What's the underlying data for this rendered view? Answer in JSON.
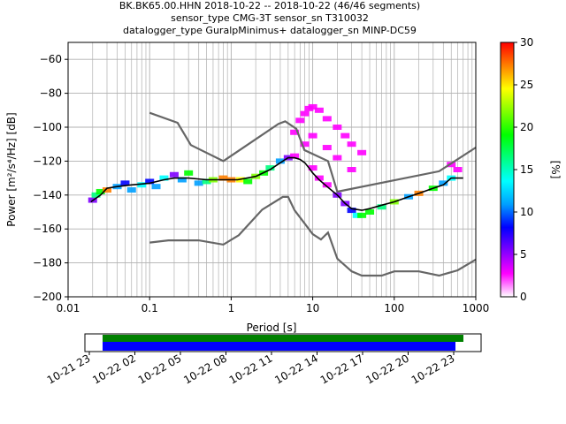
{
  "title": {
    "line1": "BK.BK65.00.HHN   2018-10-22 -- 2018-10-22  (46/46 segments)",
    "line2": "sensor_type CMG-3T sensor_sn T310032",
    "line3": "datalogger_type GuralpMinimus+ datalogger_sn MINP-DC59"
  },
  "chart_data": {
    "type": "heatmap",
    "subtype": "probabilistic power spectral density",
    "xlabel": "Period [s]",
    "ylabel": "Power [m²/s⁴/Hz] [dB]",
    "xscale": "log",
    "xlim": [
      0.01,
      1000
    ],
    "ylim": [
      -200,
      -50
    ],
    "grid": true,
    "x_ticks": [
      {
        "value": 0.01,
        "label": "0.01"
      },
      {
        "value": 0.1,
        "label": "0.1"
      },
      {
        "value": 1,
        "label": "1"
      },
      {
        "value": 10,
        "label": "10"
      },
      {
        "value": 100,
        "label": "100"
      },
      {
        "value": 1000,
        "label": "1000"
      }
    ],
    "y_ticks": [
      {
        "value": -60,
        "label": "−60"
      },
      {
        "value": -80,
        "label": "−80"
      },
      {
        "value": -100,
        "label": "−100"
      },
      {
        "value": -120,
        "label": "−120"
      },
      {
        "value": -140,
        "label": "−140"
      },
      {
        "value": -160,
        "label": "−160"
      },
      {
        "value": -180,
        "label": "−180"
      },
      {
        "value": -200,
        "label": "−200"
      }
    ],
    "colorbar": {
      "label": "[%]",
      "range": [
        0,
        30
      ],
      "ticks": [
        {
          "value": 0,
          "label": "0"
        },
        {
          "value": 5,
          "label": "5"
        },
        {
          "value": 10,
          "label": "10"
        },
        {
          "value": 15,
          "label": "15"
        },
        {
          "value": 20,
          "label": "20"
        },
        {
          "value": 25,
          "label": "25"
        },
        {
          "value": 30,
          "label": "30"
        }
      ],
      "colors": [
        "#ffffff",
        "#ff00ff",
        "#7f00ff",
        "#0000ff",
        "#00a0ff",
        "#00ffff",
        "#00ff80",
        "#00ff00",
        "#80ff00",
        "#ffff00",
        "#ff8000",
        "#ff0000"
      ]
    },
    "noise_models": [
      {
        "points": [
          [
            0.1,
            -91.5
          ],
          [
            0.22,
            -97.4
          ],
          [
            0.32,
            -110.5
          ],
          [
            0.8,
            -120
          ],
          [
            3.8,
            -98
          ],
          [
            4.6,
            -96.5
          ],
          [
            6.3,
            -101
          ],
          [
            7.9,
            -113.5
          ],
          [
            15.4,
            -120
          ],
          [
            20,
            -138
          ],
          [
            354.8,
            -126
          ],
          [
            1000,
            -112
          ]
        ]
      },
      {
        "points": [
          [
            0.1,
            -168
          ],
          [
            0.17,
            -166.7
          ],
          [
            0.4,
            -166.7
          ],
          [
            0.8,
            -169.2
          ],
          [
            1.24,
            -163.7
          ],
          [
            2.4,
            -148.6
          ],
          [
            4.3,
            -141.1
          ],
          [
            5,
            -141.1
          ],
          [
            6,
            -149
          ],
          [
            10,
            -163
          ],
          [
            12.6,
            -166.2
          ],
          [
            15.4,
            -162.1
          ],
          [
            20,
            -177.5
          ],
          [
            30,
            -185
          ],
          [
            40,
            -187.5
          ],
          [
            70,
            -187.5
          ],
          [
            100,
            -185
          ],
          [
            200,
            -185
          ],
          [
            354.8,
            -187.5
          ],
          [
            600,
            -184.4
          ],
          [
            1000,
            -178
          ]
        ]
      }
    ],
    "mean": {
      "points": [
        [
          0.019,
          -144
        ],
        [
          0.025,
          -140
        ],
        [
          0.03,
          -136
        ],
        [
          0.04,
          -135
        ],
        [
          0.06,
          -134
        ],
        [
          0.1,
          -133
        ],
        [
          0.15,
          -131
        ],
        [
          0.2,
          -130
        ],
        [
          0.3,
          -130
        ],
        [
          0.5,
          -131
        ],
        [
          0.8,
          -131
        ],
        [
          1.2,
          -131
        ],
        [
          2,
          -129
        ],
        [
          3,
          -125
        ],
        [
          4,
          -121
        ],
        [
          5,
          -118
        ],
        [
          6,
          -118
        ],
        [
          7,
          -119
        ],
        [
          8,
          -121
        ],
        [
          9,
          -124
        ],
        [
          10,
          -127
        ],
        [
          12,
          -131
        ],
        [
          15,
          -135
        ],
        [
          20,
          -140
        ],
        [
          25,
          -145
        ],
        [
          30,
          -148
        ],
        [
          40,
          -149
        ],
        [
          50,
          -148
        ],
        [
          70,
          -146
        ],
        [
          100,
          -144
        ],
        [
          150,
          -141
        ],
        [
          200,
          -139
        ],
        [
          300,
          -136
        ],
        [
          400,
          -134
        ],
        [
          500,
          -130
        ],
        [
          700,
          -130
        ]
      ]
    },
    "pdf_cells": [
      [
        0.02,
        -143,
        6
      ],
      [
        0.022,
        -140,
        16
      ],
      [
        0.025,
        -138,
        20
      ],
      [
        0.03,
        -137,
        26
      ],
      [
        0.04,
        -135,
        12
      ],
      [
        0.05,
        -133,
        8
      ],
      [
        0.06,
        -137,
        10
      ],
      [
        0.08,
        -134,
        14
      ],
      [
        0.1,
        -132,
        9
      ],
      [
        0.12,
        -135,
        11
      ],
      [
        0.15,
        -130,
        14
      ],
      [
        0.2,
        -128,
        5
      ],
      [
        0.25,
        -131,
        12
      ],
      [
        0.3,
        -127,
        18
      ],
      [
        0.4,
        -133,
        10
      ],
      [
        0.5,
        -132,
        16
      ],
      [
        0.6,
        -131,
        22
      ],
      [
        0.8,
        -130,
        26
      ],
      [
        1,
        -131,
        28
      ],
      [
        1.3,
        -131,
        24
      ],
      [
        1.6,
        -132,
        20
      ],
      [
        2,
        -129,
        22
      ],
      [
        2.5,
        -127,
        18
      ],
      [
        3,
        -124,
        15
      ],
      [
        4,
        -120,
        12
      ],
      [
        5,
        -118,
        6
      ],
      [
        6,
        -117,
        4
      ],
      [
        6,
        -103,
        2
      ],
      [
        7,
        -96,
        2
      ],
      [
        8,
        -92,
        2
      ],
      [
        9,
        -89,
        2
      ],
      [
        10,
        -88,
        2
      ],
      [
        12,
        -90,
        2
      ],
      [
        15,
        -95,
        2
      ],
      [
        20,
        -100,
        2
      ],
      [
        25,
        -105,
        2
      ],
      [
        30,
        -110,
        2
      ],
      [
        40,
        -115,
        2
      ],
      [
        8,
        -110,
        2
      ],
      [
        10,
        -105,
        2
      ],
      [
        15,
        -112,
        2
      ],
      [
        20,
        -118,
        2
      ],
      [
        30,
        -125,
        2
      ],
      [
        10,
        -124,
        3
      ],
      [
        12,
        -130,
        3
      ],
      [
        15,
        -134,
        4
      ],
      [
        20,
        -140,
        5
      ],
      [
        25,
        -145,
        6
      ],
      [
        30,
        -149,
        8
      ],
      [
        35,
        -152,
        14
      ],
      [
        40,
        -152,
        18
      ],
      [
        50,
        -150,
        20
      ],
      [
        70,
        -147,
        16
      ],
      [
        100,
        -144,
        22
      ],
      [
        150,
        -141,
        12
      ],
      [
        200,
        -139,
        26
      ],
      [
        300,
        -136,
        18
      ],
      [
        400,
        -133,
        10
      ],
      [
        500,
        -130,
        14
      ],
      [
        500,
        -122,
        3
      ],
      [
        600,
        -125,
        4
      ]
    ]
  },
  "time_bar": {
    "ticks": [
      "10-21 23",
      "10-22 02",
      "10-22 05",
      "10-22 08",
      "10-22 11",
      "10-22 14",
      "10-22 17",
      "10-22 20",
      "10-22 23"
    ],
    "data_color": "#008000",
    "gaps_color": "#0000ff"
  }
}
